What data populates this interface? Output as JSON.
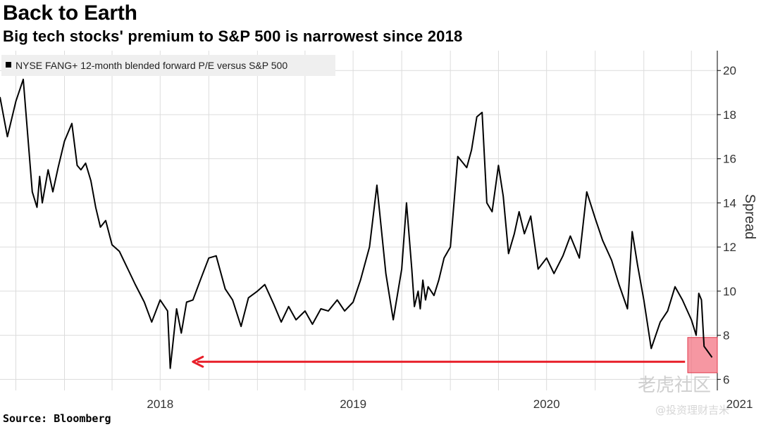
{
  "title": "Back to Earth",
  "subtitle": "Big tech stocks' premium to S&P 500 is narrowest since 2018",
  "source": "Source: Bloomberg",
  "watermark": {
    "logo_text": "老虎社区",
    "handle": "@投资理财吉米"
  },
  "colors": {
    "line": "#000000",
    "arrow": "#e8202a",
    "highlight": "#f26b7a",
    "grid": "#dcdcdc",
    "legend_bg": "#efefef"
  },
  "chart_data": {
    "type": "line",
    "legend": [
      "NYSE FANG+ 12-month blended forward P/E versus S&P 500"
    ],
    "ylabel": "Spread",
    "xlabel": "",
    "ylim": [
      5.5,
      20.9
    ],
    "xlim": [
      "2017-09-01",
      "2021-05-20"
    ],
    "yticks": [
      6,
      8,
      10,
      12,
      14,
      16,
      18,
      20
    ],
    "xticks": [
      "2018",
      "2019",
      "2020",
      "2021"
    ],
    "y_axis_position": "right",
    "grid": true,
    "series": [
      {
        "name": "NYSE FANG+ 12-month blended forward P/E versus S&P 500",
        "x": [
          "2017-09-01",
          "2017-09-15",
          "2017-10-01",
          "2017-10-15",
          "2017-11-01",
          "2017-11-10",
          "2017-11-15",
          "2017-11-20",
          "2017-12-01",
          "2017-12-10",
          "2017-12-20",
          "2018-01-01",
          "2018-01-15",
          "2018-01-25",
          "2018-02-01",
          "2018-02-10",
          "2018-02-20",
          "2018-03-01",
          "2018-03-10",
          "2018-03-20",
          "2018-04-01",
          "2018-04-15",
          "2018-05-01",
          "2018-05-15",
          "2018-06-01",
          "2018-06-15",
          "2018-07-01",
          "2018-07-15",
          "2018-07-20",
          "2018-07-25",
          "2018-08-01",
          "2018-08-10",
          "2018-08-20",
          "2018-09-01",
          "2018-09-15",
          "2018-10-01",
          "2018-10-15",
          "2018-11-01",
          "2018-11-15",
          "2018-12-01",
          "2018-12-15",
          "2019-01-01",
          "2019-01-15",
          "2019-02-01",
          "2019-02-15",
          "2019-03-01",
          "2019-03-15",
          "2019-04-01",
          "2019-04-15",
          "2019-05-01",
          "2019-05-15",
          "2019-06-01",
          "2019-06-15",
          "2019-07-01",
          "2019-07-15",
          "2019-08-01",
          "2019-08-15",
          "2019-09-01",
          "2019-09-15",
          "2019-10-01",
          "2019-10-10",
          "2019-10-20",
          "2019-10-25",
          "2019-11-01",
          "2019-11-05",
          "2019-11-10",
          "2019-11-15",
          "2019-11-20",
          "2019-12-01",
          "2019-12-10",
          "2019-12-20",
          "2020-01-01",
          "2020-01-15",
          "2020-02-01",
          "2020-02-10",
          "2020-02-20",
          "2020-03-01",
          "2020-03-10",
          "2020-03-20",
          "2020-04-01",
          "2020-04-10",
          "2020-04-20",
          "2020-05-01",
          "2020-05-10",
          "2020-05-20",
          "2020-06-01",
          "2020-06-15",
          "2020-07-01",
          "2020-07-15",
          "2020-08-01",
          "2020-08-15",
          "2020-09-01",
          "2020-09-15",
          "2020-10-01",
          "2020-10-15",
          "2020-11-01",
          "2020-11-15",
          "2020-12-01",
          "2020-12-10",
          "2020-12-20",
          "2021-01-01",
          "2021-01-15",
          "2021-02-01",
          "2021-02-15",
          "2021-03-01",
          "2021-03-15",
          "2021-04-01",
          "2021-04-10",
          "2021-04-15",
          "2021-04-20",
          "2021-04-25",
          "2021-05-01",
          "2021-05-10"
        ],
        "values": [
          18.8,
          17.0,
          18.6,
          19.6,
          14.5,
          13.8,
          15.2,
          14.0,
          15.5,
          14.5,
          15.6,
          16.8,
          17.6,
          15.7,
          15.5,
          15.8,
          15.0,
          13.8,
          12.9,
          13.2,
          12.1,
          11.8,
          11.0,
          10.3,
          9.5,
          8.6,
          9.6,
          9.1,
          6.5,
          7.6,
          9.2,
          8.1,
          9.5,
          9.6,
          10.5,
          11.5,
          11.6,
          10.1,
          9.6,
          8.4,
          9.7,
          10.0,
          10.3,
          9.4,
          8.6,
          9.3,
          8.7,
          9.1,
          8.5,
          9.2,
          9.1,
          9.6,
          9.1,
          9.5,
          10.5,
          12.0,
          14.8,
          10.8,
          8.7,
          11.0,
          14.0,
          11.0,
          9.3,
          10.0,
          9.2,
          10.5,
          9.6,
          10.2,
          9.8,
          10.5,
          11.5,
          12.0,
          16.1,
          15.6,
          16.4,
          17.9,
          18.1,
          14.0,
          13.6,
          15.7,
          14.3,
          11.7,
          12.6,
          13.6,
          12.6,
          13.4,
          11.0,
          11.5,
          10.8,
          11.6,
          12.5,
          11.5,
          14.5,
          13.3,
          12.3,
          11.4,
          10.3,
          9.2,
          12.7,
          11.2,
          9.6,
          7.4,
          8.6,
          9.1,
          10.2,
          9.6,
          8.7,
          8.0,
          9.9,
          9.6,
          7.5,
          7.3,
          7.0
        ]
      }
    ],
    "annotations": [
      {
        "type": "highlight-box",
        "x": [
          "2021-03-25",
          "2021-05-20"
        ],
        "y": [
          6.3,
          7.9
        ]
      },
      {
        "type": "arrow",
        "direction": "left",
        "x_from": "2021-03-20",
        "x_to": "2018-09-01",
        "y": 6.8
      }
    ]
  }
}
